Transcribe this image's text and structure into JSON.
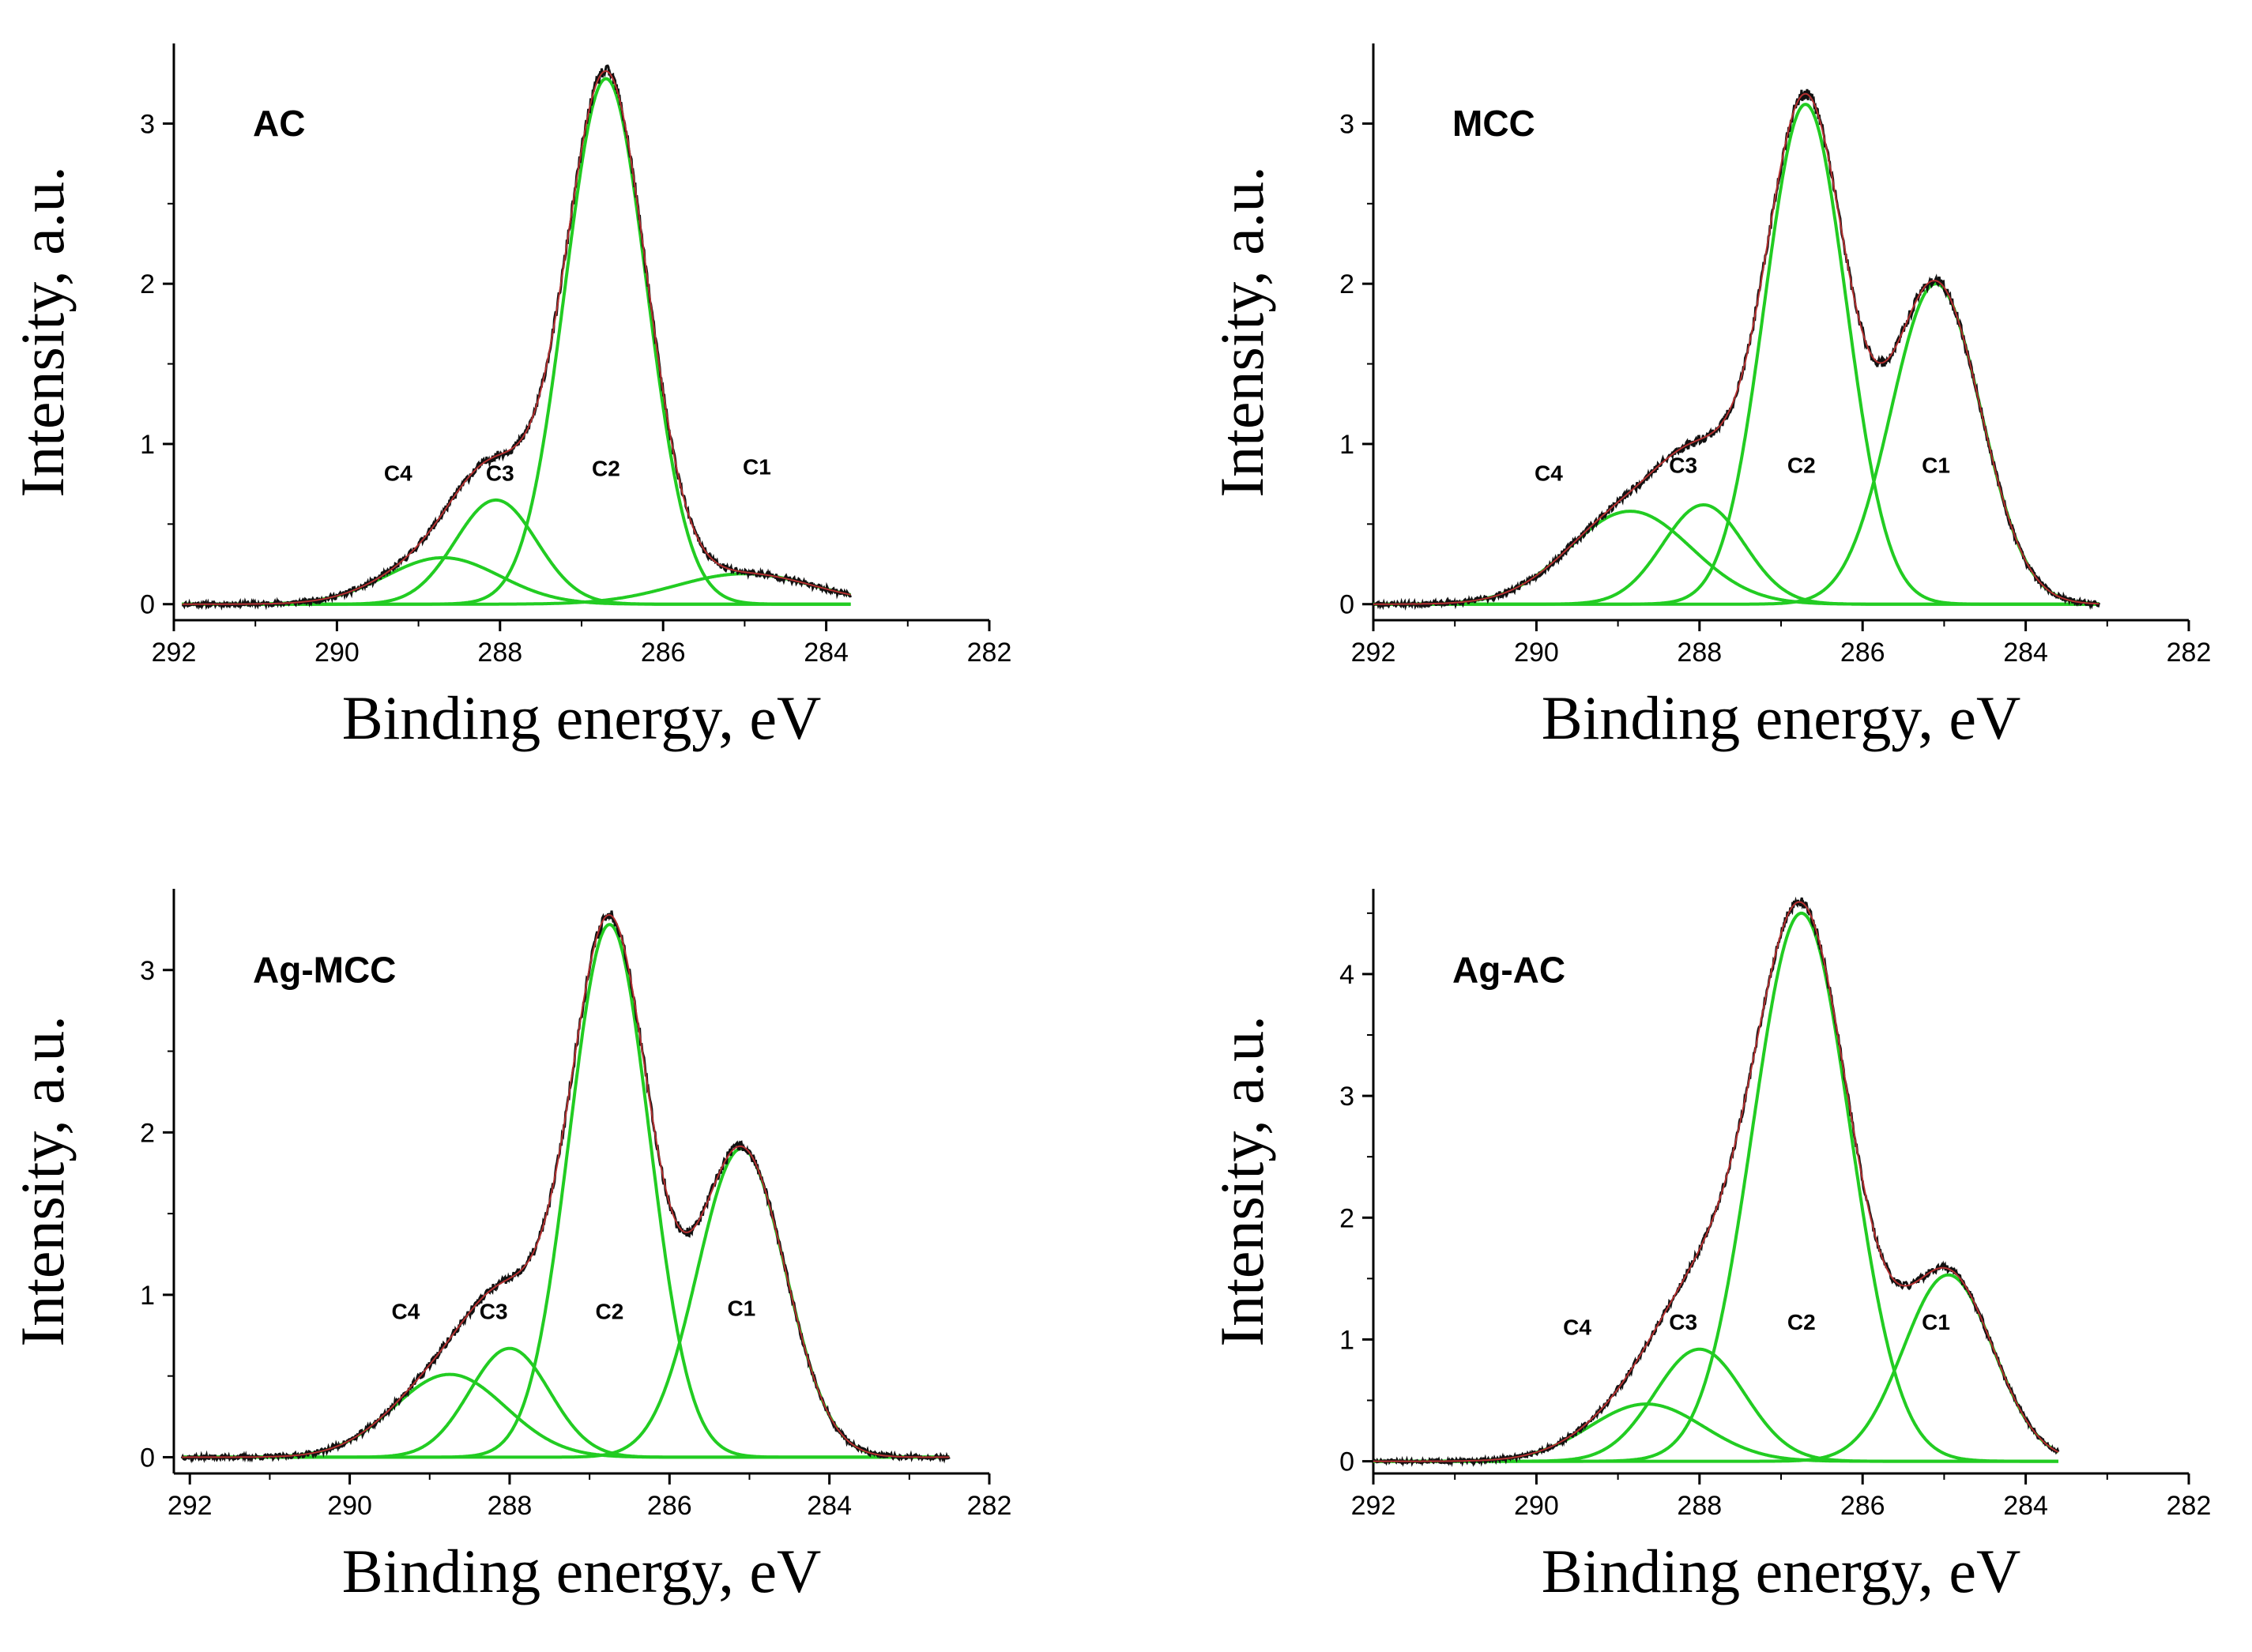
{
  "chart_data": [
    {
      "type": "line",
      "title": "AC",
      "xlabel": "Binding energy, eV",
      "ylabel": "Intensity, a.u.",
      "xlim": [
        292,
        282
      ],
      "ylim": [
        -0.1,
        3.5
      ],
      "x_ticks": [
        292,
        290,
        288,
        286,
        284,
        282
      ],
      "y_ticks": [
        0,
        1,
        2,
        3
      ],
      "series": [
        {
          "name": "C1",
          "color": "#22cc22",
          "center": 285.0,
          "height": 0.19,
          "sigma": 0.85
        },
        {
          "name": "C2",
          "color": "#22cc22",
          "center": 286.7,
          "height": 3.28,
          "sigma": 0.5
        },
        {
          "name": "C3",
          "color": "#22cc22",
          "center": 288.05,
          "height": 0.65,
          "sigma": 0.5
        },
        {
          "name": "C4",
          "color": "#22cc22",
          "center": 288.7,
          "height": 0.29,
          "sigma": 0.7
        }
      ],
      "peak_labels": [
        {
          "text": "C4",
          "x": 289.25,
          "y": 0.77
        },
        {
          "text": "C3",
          "x": 288.0,
          "y": 0.77
        },
        {
          "text": "C2",
          "x": 286.7,
          "y": 0.8
        },
        {
          "text": "C1",
          "x": 284.85,
          "y": 0.81
        }
      ],
      "envelope_color": "#b33030",
      "data_color": "#111111",
      "baseline_x_range": [
        291.9,
        283.7
      ],
      "noise_seed": 11
    },
    {
      "type": "line",
      "title": "MCC",
      "xlabel": "Binding energy, eV",
      "ylabel": "Intensity, a.u.",
      "xlim": [
        292,
        282
      ],
      "ylim": [
        -0.1,
        3.5
      ],
      "x_ticks": [
        292,
        290,
        288,
        286,
        284,
        282
      ],
      "y_ticks": [
        0,
        1,
        2,
        3
      ],
      "series": [
        {
          "name": "C1",
          "color": "#22cc22",
          "center": 285.1,
          "height": 2.0,
          "sigma": 0.55
        },
        {
          "name": "C2",
          "color": "#22cc22",
          "center": 286.7,
          "height": 3.12,
          "sigma": 0.5
        },
        {
          "name": "C3",
          "color": "#22cc22",
          "center": 287.95,
          "height": 0.62,
          "sigma": 0.5
        },
        {
          "name": "C4",
          "color": "#22cc22",
          "center": 288.85,
          "height": 0.58,
          "sigma": 0.75
        }
      ],
      "peak_labels": [
        {
          "text": "C4",
          "x": 289.85,
          "y": 0.77
        },
        {
          "text": "C3",
          "x": 288.2,
          "y": 0.82
        },
        {
          "text": "C2",
          "x": 286.75,
          "y": 0.82
        },
        {
          "text": "C1",
          "x": 285.1,
          "y": 0.82
        }
      ],
      "envelope_color": "#b33030",
      "data_color": "#111111",
      "baseline_x_range": [
        292,
        283.1
      ],
      "noise_seed": 23
    },
    {
      "type": "line",
      "title": "Ag-MCC",
      "xlabel": "Binding energy, eV",
      "ylabel": "Intensity, a.u.",
      "xlim": [
        292.2,
        282
      ],
      "ylim": [
        -0.1,
        3.5
      ],
      "x_ticks": [
        292,
        290,
        288,
        286,
        284,
        282
      ],
      "y_ticks": [
        0,
        1,
        2,
        3
      ],
      "series": [
        {
          "name": "C1",
          "color": "#22cc22",
          "center": 285.1,
          "height": 1.9,
          "sigma": 0.55
        },
        {
          "name": "C2",
          "color": "#22cc22",
          "center": 286.75,
          "height": 3.28,
          "sigma": 0.5
        },
        {
          "name": "C3",
          "color": "#22cc22",
          "center": 288.0,
          "height": 0.67,
          "sigma": 0.5
        },
        {
          "name": "C4",
          "color": "#22cc22",
          "center": 288.75,
          "height": 0.51,
          "sigma": 0.7
        }
      ],
      "peak_labels": [
        {
          "text": "C4",
          "x": 289.3,
          "y": 0.85
        },
        {
          "text": "C3",
          "x": 288.2,
          "y": 0.85
        },
        {
          "text": "C2",
          "x": 286.75,
          "y": 0.85
        },
        {
          "text": "C1",
          "x": 285.1,
          "y": 0.87
        }
      ],
      "envelope_color": "#b33030",
      "data_color": "#111111",
      "baseline_x_range": [
        292.1,
        282.5
      ],
      "noise_seed": 37
    },
    {
      "type": "line",
      "title": "Ag-AC",
      "xlabel": "Binding energy, eV",
      "ylabel": "Intensity, a.u.",
      "xlim": [
        292,
        282
      ],
      "ylim": [
        -0.1,
        4.7
      ],
      "x_ticks": [
        292,
        290,
        288,
        286,
        284,
        282
      ],
      "y_ticks": [
        0,
        1,
        2,
        3,
        4
      ],
      "series": [
        {
          "name": "C1",
          "color": "#22cc22",
          "center": 284.95,
          "height": 1.53,
          "sigma": 0.55
        },
        {
          "name": "C2",
          "color": "#22cc22",
          "center": 286.75,
          "height": 4.5,
          "sigma": 0.6
        },
        {
          "name": "C3",
          "color": "#22cc22",
          "center": 288.0,
          "height": 0.92,
          "sigma": 0.55
        },
        {
          "name": "C4",
          "color": "#22cc22",
          "center": 288.65,
          "height": 0.47,
          "sigma": 0.7
        }
      ],
      "peak_labels": [
        {
          "text": "C4",
          "x": 289.5,
          "y": 1.04
        },
        {
          "text": "C3",
          "x": 288.2,
          "y": 1.08
        },
        {
          "text": "C2",
          "x": 286.75,
          "y": 1.08
        },
        {
          "text": "C1",
          "x": 285.1,
          "y": 1.08
        }
      ],
      "envelope_color": "#b33030",
      "data_color": "#111111",
      "baseline_x_range": [
        292,
        283.6
      ],
      "noise_seed": 51
    }
  ]
}
